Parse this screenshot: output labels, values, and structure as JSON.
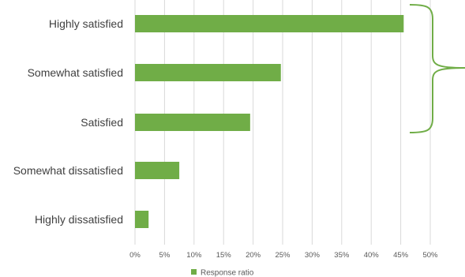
{
  "chart_data": {
    "type": "bar",
    "orientation": "horizontal",
    "categories": [
      "Highly satisfied",
      "Somewhat satisfied",
      "Satisfied",
      "Somewhat dissatisfied",
      "Highly dissatisfied"
    ],
    "series": [
      {
        "name": "Response ratio",
        "values": [
          45.5,
          24.7,
          19.5,
          7.5,
          2.3
        ]
      }
    ],
    "xlim": [
      0,
      50
    ],
    "x_ticks": [
      "0%",
      "5%",
      "10%",
      "15%",
      "20%",
      "25%",
      "30%",
      "35%",
      "40%",
      "45%",
      "50%"
    ],
    "grid": "vertical",
    "legend": "bottom",
    "color": "#70ad47",
    "annotations": [
      {
        "type": "curly-brace",
        "spans": [
          "Highly satisfied",
          "Somewhat satisfied",
          "Satisfied"
        ]
      }
    ]
  }
}
